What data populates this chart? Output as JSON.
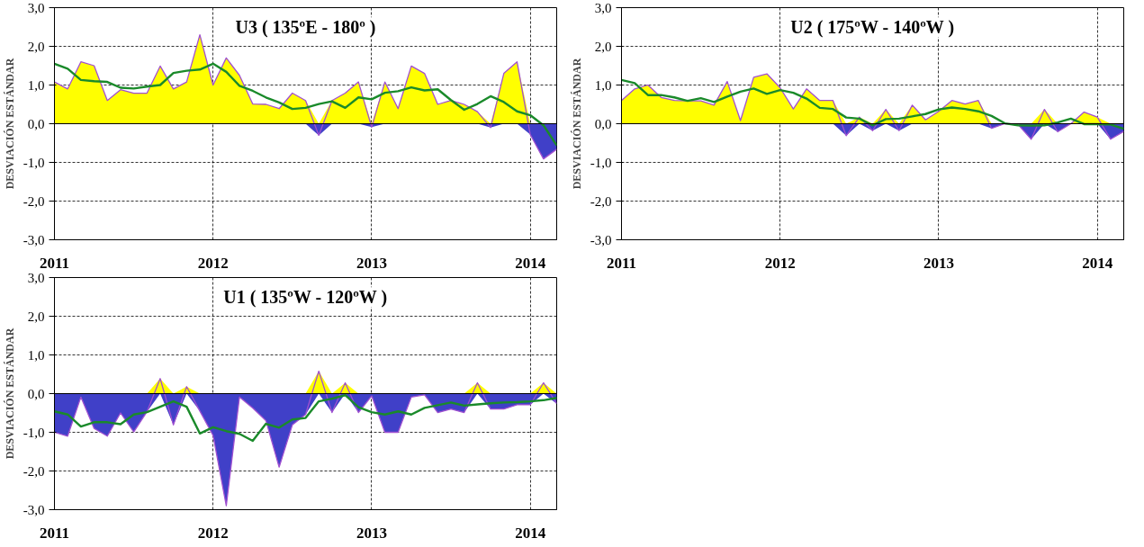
{
  "chart_data": [
    {
      "type": "area",
      "title": "U3 ( 135ºE - 180º )",
      "ylabel": "DESVIACIÓN ESTÁNDAR",
      "x": [
        "2011-01",
        "2011-02",
        "2011-03",
        "2011-04",
        "2011-05",
        "2011-06",
        "2011-07",
        "2011-08",
        "2011-09",
        "2011-10",
        "2011-11",
        "2011-12",
        "2012-01",
        "2012-02",
        "2012-03",
        "2012-04",
        "2012-05",
        "2012-06",
        "2012-07",
        "2012-08",
        "2012-09",
        "2012-10",
        "2012-11",
        "2012-12",
        "2013-01",
        "2013-02",
        "2013-03",
        "2013-04",
        "2013-05",
        "2013-06",
        "2013-07",
        "2013-08",
        "2013-09",
        "2013-10",
        "2013-11",
        "2013-12",
        "2014-01",
        "2014-02",
        "2014-03"
      ],
      "xlim": [
        "2011-01",
        "2014-03"
      ],
      "xticks": [
        "2011",
        "2012",
        "2013",
        "2014"
      ],
      "ylim": [
        -3,
        3
      ],
      "yticks": [
        {
          "value": -3,
          "label": "-3,0"
        },
        {
          "value": -2,
          "label": "-2,0"
        },
        {
          "value": -1,
          "label": "-1,0"
        },
        {
          "value": 0,
          "label": "0,0"
        },
        {
          "value": 1,
          "label": "1,0"
        },
        {
          "value": 2,
          "label": "2,0"
        },
        {
          "value": 3,
          "label": "3,0"
        }
      ],
      "grid": true,
      "series": [
        {
          "color": "#ffff00",
          "values": [
            1.08,
            0.9,
            1.6,
            1.5,
            0.6,
            0.88,
            0.79,
            0.79,
            1.49,
            0.9,
            1.08,
            2.3,
            1.0,
            1.7,
            1.25,
            0.51,
            0.5,
            0.39,
            0.79,
            0.6,
            0,
            0.6,
            0.79,
            1.08,
            0,
            1.08,
            0.39,
            1.49,
            1.3,
            0.5,
            0.6,
            0.5,
            0.31,
            0,
            1.3,
            1.6,
            0,
            0,
            0
          ]
        },
        {
          "color": "#4040c8",
          "values": [
            0,
            0,
            0,
            0,
            0,
            0,
            0,
            0,
            0,
            0,
            0,
            0,
            0,
            0,
            0,
            0,
            0,
            0,
            0,
            0,
            -0.3,
            0,
            0,
            0,
            -0.09,
            0,
            0,
            0,
            0,
            0,
            0,
            0,
            0,
            -0.1,
            0,
            0,
            -0.28,
            -0.91,
            -0.66
          ]
        },
        {
          "type": "line",
          "color": "#a050d0",
          "values": [
            1.08,
            0.9,
            1.6,
            1.5,
            0.6,
            0.88,
            0.79,
            0.79,
            1.49,
            0.9,
            1.08,
            2.3,
            1.0,
            1.7,
            1.25,
            0.51,
            0.5,
            0.39,
            0.79,
            0.6,
            -0.3,
            0.6,
            0.79,
            1.08,
            -0.09,
            1.08,
            0.39,
            1.49,
            1.3,
            0.5,
            0.6,
            0.5,
            0.31,
            -0.1,
            1.3,
            1.6,
            -0.28,
            -0.91,
            -0.66
          ]
        },
        {
          "type": "line",
          "color": "#1a8a2a",
          "values": [
            1.55,
            1.42,
            1.13,
            1.1,
            1.08,
            0.93,
            0.91,
            0.96,
            1.0,
            1.31,
            1.37,
            1.4,
            1.55,
            1.34,
            0.98,
            0.85,
            0.68,
            0.55,
            0.38,
            0.41,
            0.51,
            0.58,
            0.41,
            0.68,
            0.63,
            0.8,
            0.84,
            0.94,
            0.86,
            0.89,
            0.61,
            0.36,
            0.51,
            0.71,
            0.56,
            0.32,
            0.22,
            -0.04,
            -0.56
          ]
        }
      ]
    },
    {
      "type": "area",
      "title": "U2 ( 175ºW - 140ºW )",
      "ylabel": "DESVIACIÓN ESTÁNDAR",
      "x": [
        "2011-01",
        "2011-02",
        "2011-03",
        "2011-04",
        "2011-05",
        "2011-06",
        "2011-07",
        "2011-08",
        "2011-09",
        "2011-10",
        "2011-11",
        "2011-12",
        "2012-01",
        "2012-02",
        "2012-03",
        "2012-04",
        "2012-05",
        "2012-06",
        "2012-07",
        "2012-08",
        "2012-09",
        "2012-10",
        "2012-11",
        "2012-12",
        "2013-01",
        "2013-02",
        "2013-03",
        "2013-04",
        "2013-05",
        "2013-06",
        "2013-07",
        "2013-08",
        "2013-09",
        "2013-10",
        "2013-11",
        "2013-12",
        "2014-01",
        "2014-02",
        "2014-03"
      ],
      "xlim": [
        "2011-01",
        "2014-03"
      ],
      "xticks": [
        "2011",
        "2012",
        "2013",
        "2014"
      ],
      "ylim": [
        -3,
        3
      ],
      "yticks": [
        {
          "value": -3,
          "label": "-3,0"
        },
        {
          "value": -2,
          "label": "-2,0"
        },
        {
          "value": -1,
          "label": "-1,0"
        },
        {
          "value": 0,
          "label": "0,0"
        },
        {
          "value": 1,
          "label": "1,0"
        },
        {
          "value": 2,
          "label": "2,0"
        },
        {
          "value": 3,
          "label": "3,0"
        }
      ],
      "grid": true,
      "series": [
        {
          "color": "#ffff00",
          "values": [
            0.6,
            0.9,
            1.0,
            0.68,
            0.6,
            0.59,
            0.59,
            0.48,
            1.09,
            0.08,
            1.2,
            1.29,
            0.93,
            0.38,
            0.9,
            0.6,
            0.6,
            0,
            0.17,
            0,
            0.37,
            0,
            0.48,
            0.1,
            0.32,
            0.6,
            0.51,
            0.6,
            0,
            0.0,
            0,
            0,
            0.37,
            0,
            0.0,
            0.3,
            0.17,
            0,
            0
          ]
        },
        {
          "color": "#4040c8",
          "values": [
            0,
            0,
            0,
            0,
            0,
            0,
            0,
            0,
            0,
            0,
            0,
            0,
            0,
            0,
            0,
            0,
            0,
            -0.31,
            0,
            -0.18,
            0,
            -0.18,
            0,
            0,
            0,
            0,
            0,
            0,
            -0.12,
            0,
            -0.02,
            -0.4,
            0,
            -0.21,
            0,
            0,
            0,
            -0.4,
            -0.2
          ]
        },
        {
          "type": "line",
          "color": "#a050d0",
          "values": [
            0.6,
            0.9,
            1.0,
            0.68,
            0.6,
            0.59,
            0.59,
            0.48,
            1.09,
            0.08,
            1.2,
            1.29,
            0.93,
            0.38,
            0.9,
            0.6,
            0.6,
            -0.31,
            0.17,
            -0.18,
            0.37,
            -0.18,
            0.48,
            0.1,
            0.32,
            0.6,
            0.51,
            0.6,
            -0.12,
            0.0,
            -0.02,
            -0.4,
            0.37,
            -0.21,
            0.0,
            0.3,
            0.17,
            -0.4,
            -0.2
          ]
        },
        {
          "type": "line",
          "color": "#1a8a2a",
          "values": [
            1.13,
            1.05,
            0.74,
            0.74,
            0.68,
            0.59,
            0.66,
            0.56,
            0.7,
            0.83,
            0.91,
            0.77,
            0.87,
            0.8,
            0.65,
            0.41,
            0.38,
            0.16,
            0.13,
            -0.04,
            0.12,
            0.13,
            0.19,
            0.25,
            0.37,
            0.42,
            0.38,
            0.32,
            0.2,
            0.01,
            -0.04,
            -0.05,
            -0.04,
            0.03,
            0.13,
            -0.01,
            -0.01,
            -0.02,
            -0.13
          ]
        }
      ]
    },
    {
      "type": "area",
      "title": "U1 ( 135ºW - 120ºW )",
      "ylabel": "DESVIACIÓN ESTÁNDAR",
      "x": [
        "2011-01",
        "2011-02",
        "2011-03",
        "2011-04",
        "2011-05",
        "2011-06",
        "2011-07",
        "2011-08",
        "2011-09",
        "2011-10",
        "2011-11",
        "2011-12",
        "2012-01",
        "2012-02",
        "2012-03",
        "2012-04",
        "2012-05",
        "2012-06",
        "2012-07",
        "2012-08",
        "2012-09",
        "2012-10",
        "2012-11",
        "2012-12",
        "2013-01",
        "2013-02",
        "2013-03",
        "2013-04",
        "2013-05",
        "2013-06",
        "2013-07",
        "2013-08",
        "2013-09",
        "2013-10",
        "2013-11",
        "2013-12",
        "2014-01",
        "2014-02",
        "2014-03"
      ],
      "xlim": [
        "2011-01",
        "2014-03"
      ],
      "xticks": [
        "2011",
        "2012",
        "2013",
        "2014"
      ],
      "ylim": [
        -3,
        3
      ],
      "yticks": [
        {
          "value": -3,
          "label": "-3,0"
        },
        {
          "value": -2,
          "label": "-2,0"
        },
        {
          "value": -1,
          "label": "-1,0"
        },
        {
          "value": 0,
          "label": "0,0"
        },
        {
          "value": 1,
          "label": "1,0"
        },
        {
          "value": 2,
          "label": "2,0"
        },
        {
          "value": 3,
          "label": "3,0"
        }
      ],
      "grid": true,
      "series": [
        {
          "color": "#ffff00",
          "values": [
            0,
            0,
            0,
            0,
            0,
            0,
            0,
            0,
            0.39,
            0,
            0.18,
            0,
            0,
            0,
            0,
            0,
            0,
            0,
            0,
            0,
            0.58,
            0,
            0.28,
            0,
            0,
            0,
            0,
            0,
            0,
            0,
            0,
            0,
            0.28,
            0,
            0,
            0,
            0,
            0.28,
            0
          ]
        },
        {
          "color": "#4040c8",
          "values": [
            -1.0,
            -1.1,
            -0.09,
            -0.9,
            -1.1,
            -0.5,
            -0.99,
            -0.47,
            0,
            -0.81,
            0,
            -0.45,
            -1.08,
            -2.9,
            -0.09,
            -0.37,
            -0.7,
            -1.9,
            -0.81,
            -0.54,
            0,
            -0.49,
            0,
            -0.49,
            -0.06,
            -1.0,
            -1.0,
            -0.09,
            -0.03,
            -0.49,
            -0.4,
            -0.49,
            0,
            -0.4,
            -0.4,
            -0.29,
            -0.29,
            0,
            -0.26
          ]
        },
        {
          "type": "line",
          "color": "#a050d0",
          "values": [
            -1.0,
            -1.1,
            -0.09,
            -0.9,
            -1.1,
            -0.5,
            -0.99,
            -0.47,
            0.39,
            -0.81,
            0.18,
            -0.45,
            -1.08,
            -2.9,
            -0.09,
            -0.37,
            -0.7,
            -1.9,
            -0.81,
            -0.54,
            0.58,
            -0.49,
            0.28,
            -0.49,
            -0.06,
            -1.0,
            -1.0,
            -0.09,
            -0.03,
            -0.49,
            -0.4,
            -0.49,
            0.28,
            -0.4,
            -0.4,
            -0.29,
            -0.29,
            0.28,
            -0.26
          ]
        },
        {
          "type": "line",
          "color": "#1a8a2a",
          "values": [
            -0.46,
            -0.54,
            -0.85,
            -0.74,
            -0.74,
            -0.79,
            -0.54,
            -0.48,
            -0.34,
            -0.2,
            -0.34,
            -1.03,
            -0.87,
            -0.97,
            -1.04,
            -1.22,
            -0.78,
            -0.88,
            -0.67,
            -0.63,
            -0.2,
            -0.13,
            -0.04,
            -0.35,
            -0.48,
            -0.54,
            -0.46,
            -0.54,
            -0.37,
            -0.3,
            -0.23,
            -0.31,
            -0.28,
            -0.25,
            -0.23,
            -0.22,
            -0.2,
            -0.17,
            -0.11
          ]
        }
      ]
    }
  ]
}
